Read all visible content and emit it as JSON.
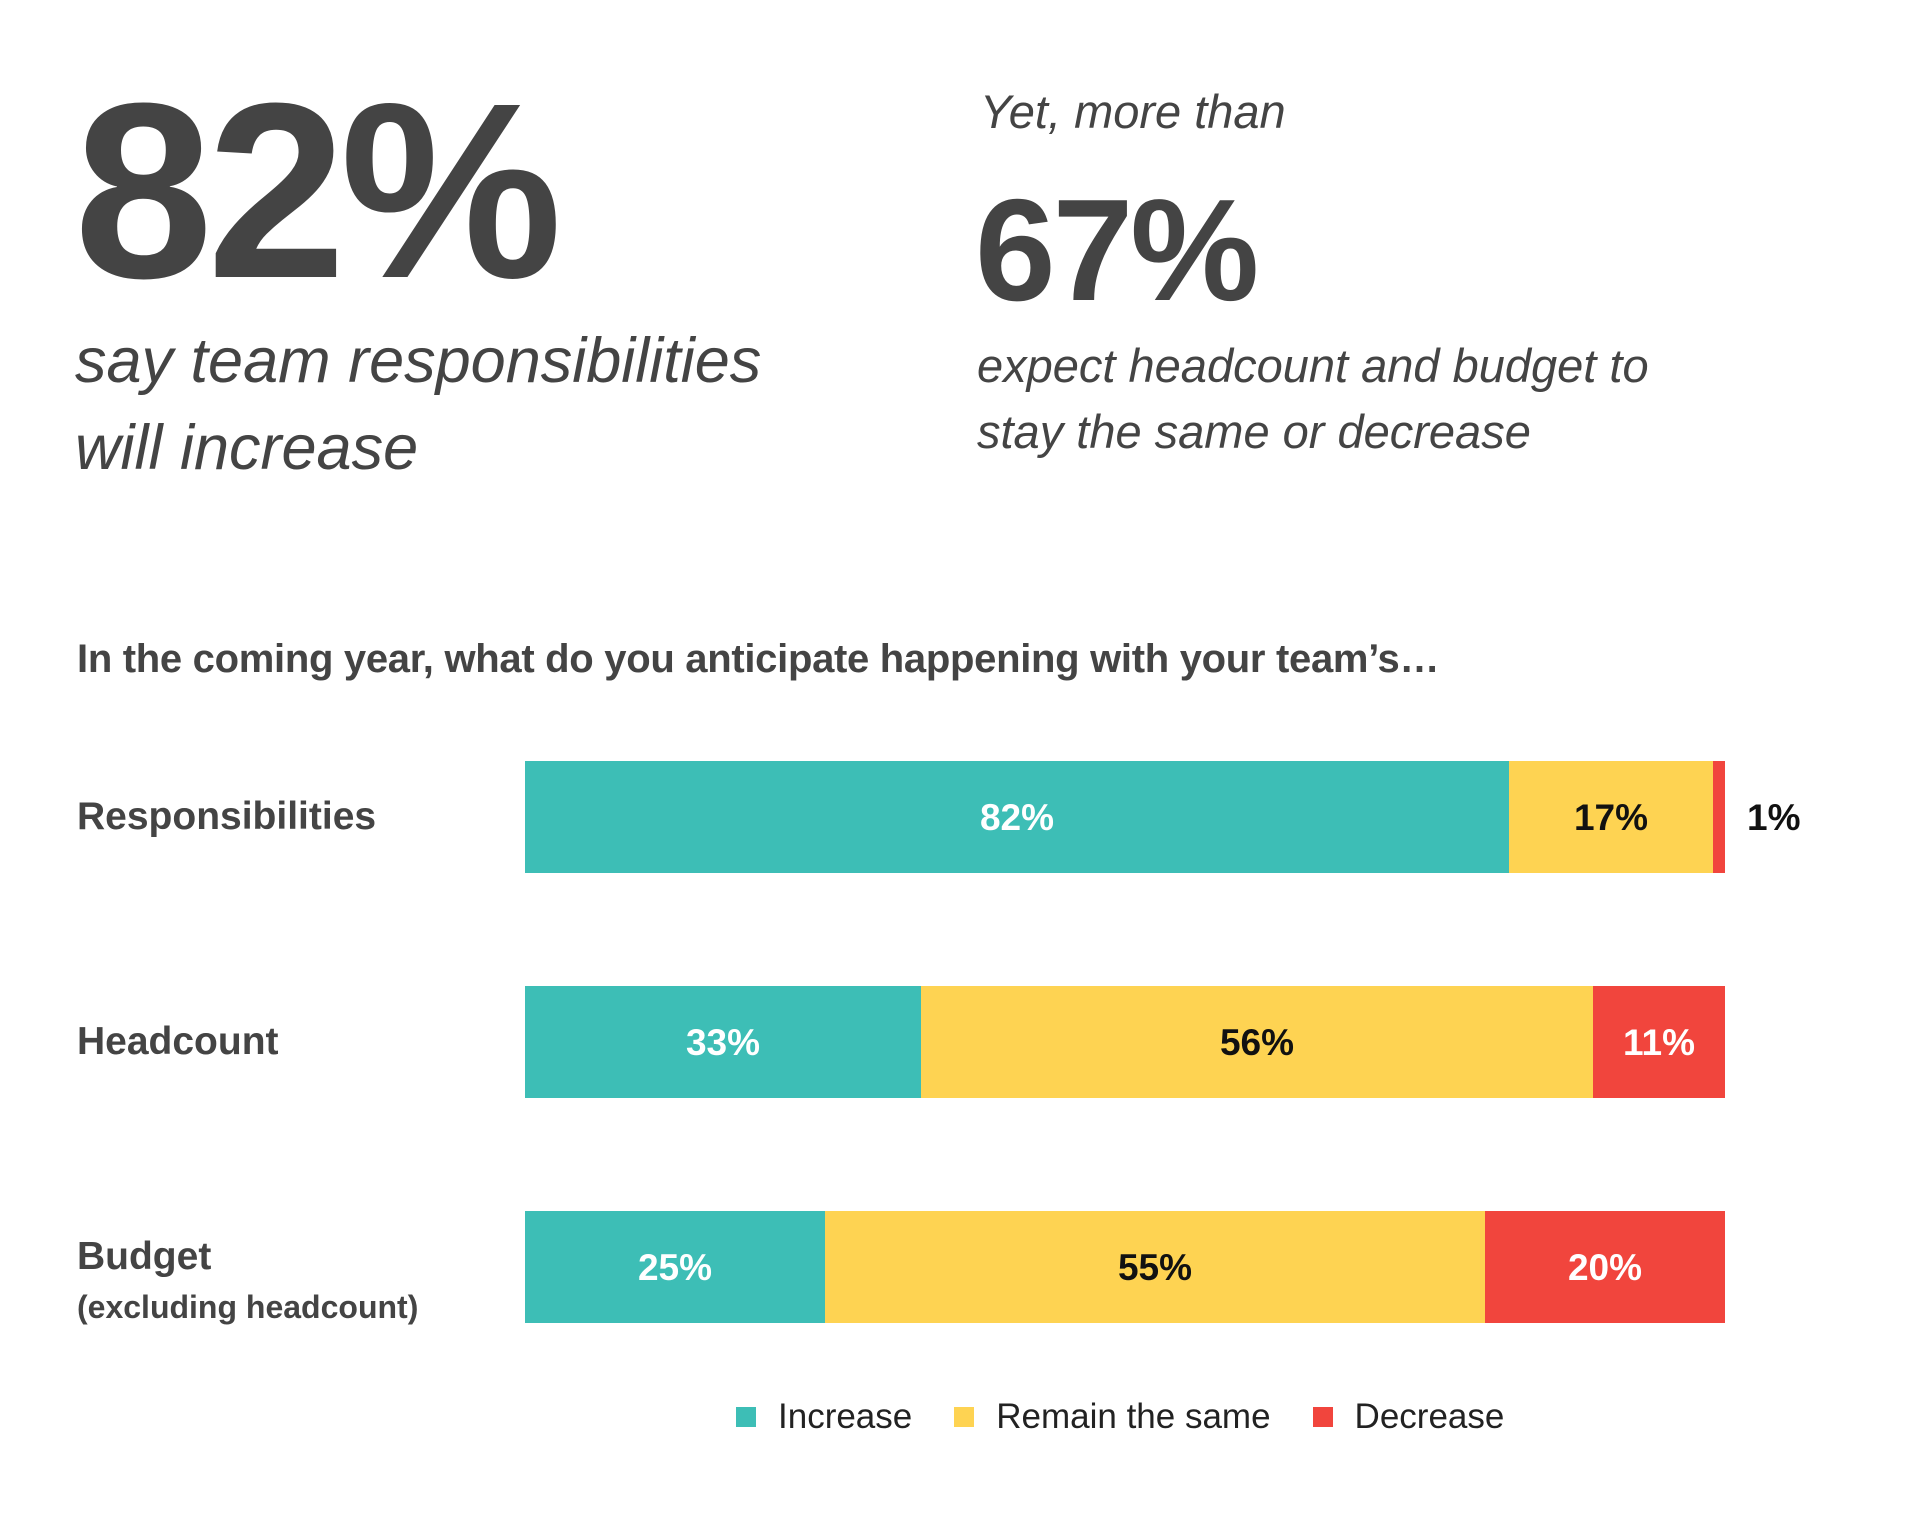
{
  "headline": {
    "stat1": {
      "value": "82%",
      "caption_lines": [
        "say team responsibilities",
        "will increase"
      ]
    },
    "stat2": {
      "lead": "Yet, more than",
      "value": "67%",
      "caption_lines": [
        "expect headcount and budget to",
        "stay the same or decrease"
      ]
    }
  },
  "colors": {
    "increase": "#3DBEB6",
    "remain": "#FED352",
    "decrease": "#F1453D",
    "text": "#444444"
  },
  "chart_data": {
    "type": "bar",
    "orientation": "horizontal",
    "stacked": true,
    "title": "In the coming year, what do you anticipate happening with your team’s…",
    "categories": [
      "Responsibilities",
      "Headcount",
      "Budget"
    ],
    "category_sublabels": [
      "",
      "",
      "(excluding headcount)"
    ],
    "series": [
      {
        "name": "Increase",
        "values": [
          82,
          33,
          25
        ],
        "labels": [
          "82%",
          "33%",
          "25%"
        ]
      },
      {
        "name": "Remain the same",
        "values": [
          17,
          56,
          55
        ],
        "labels": [
          "17%",
          "56%",
          "55%"
        ]
      },
      {
        "name": "Decrease",
        "values": [
          1,
          11,
          20
        ],
        "labels": [
          "1%",
          "11%",
          "20%"
        ]
      }
    ],
    "xlim": [
      0,
      100
    ],
    "unit": "%",
    "grid": false,
    "legend": "bottom-center"
  }
}
